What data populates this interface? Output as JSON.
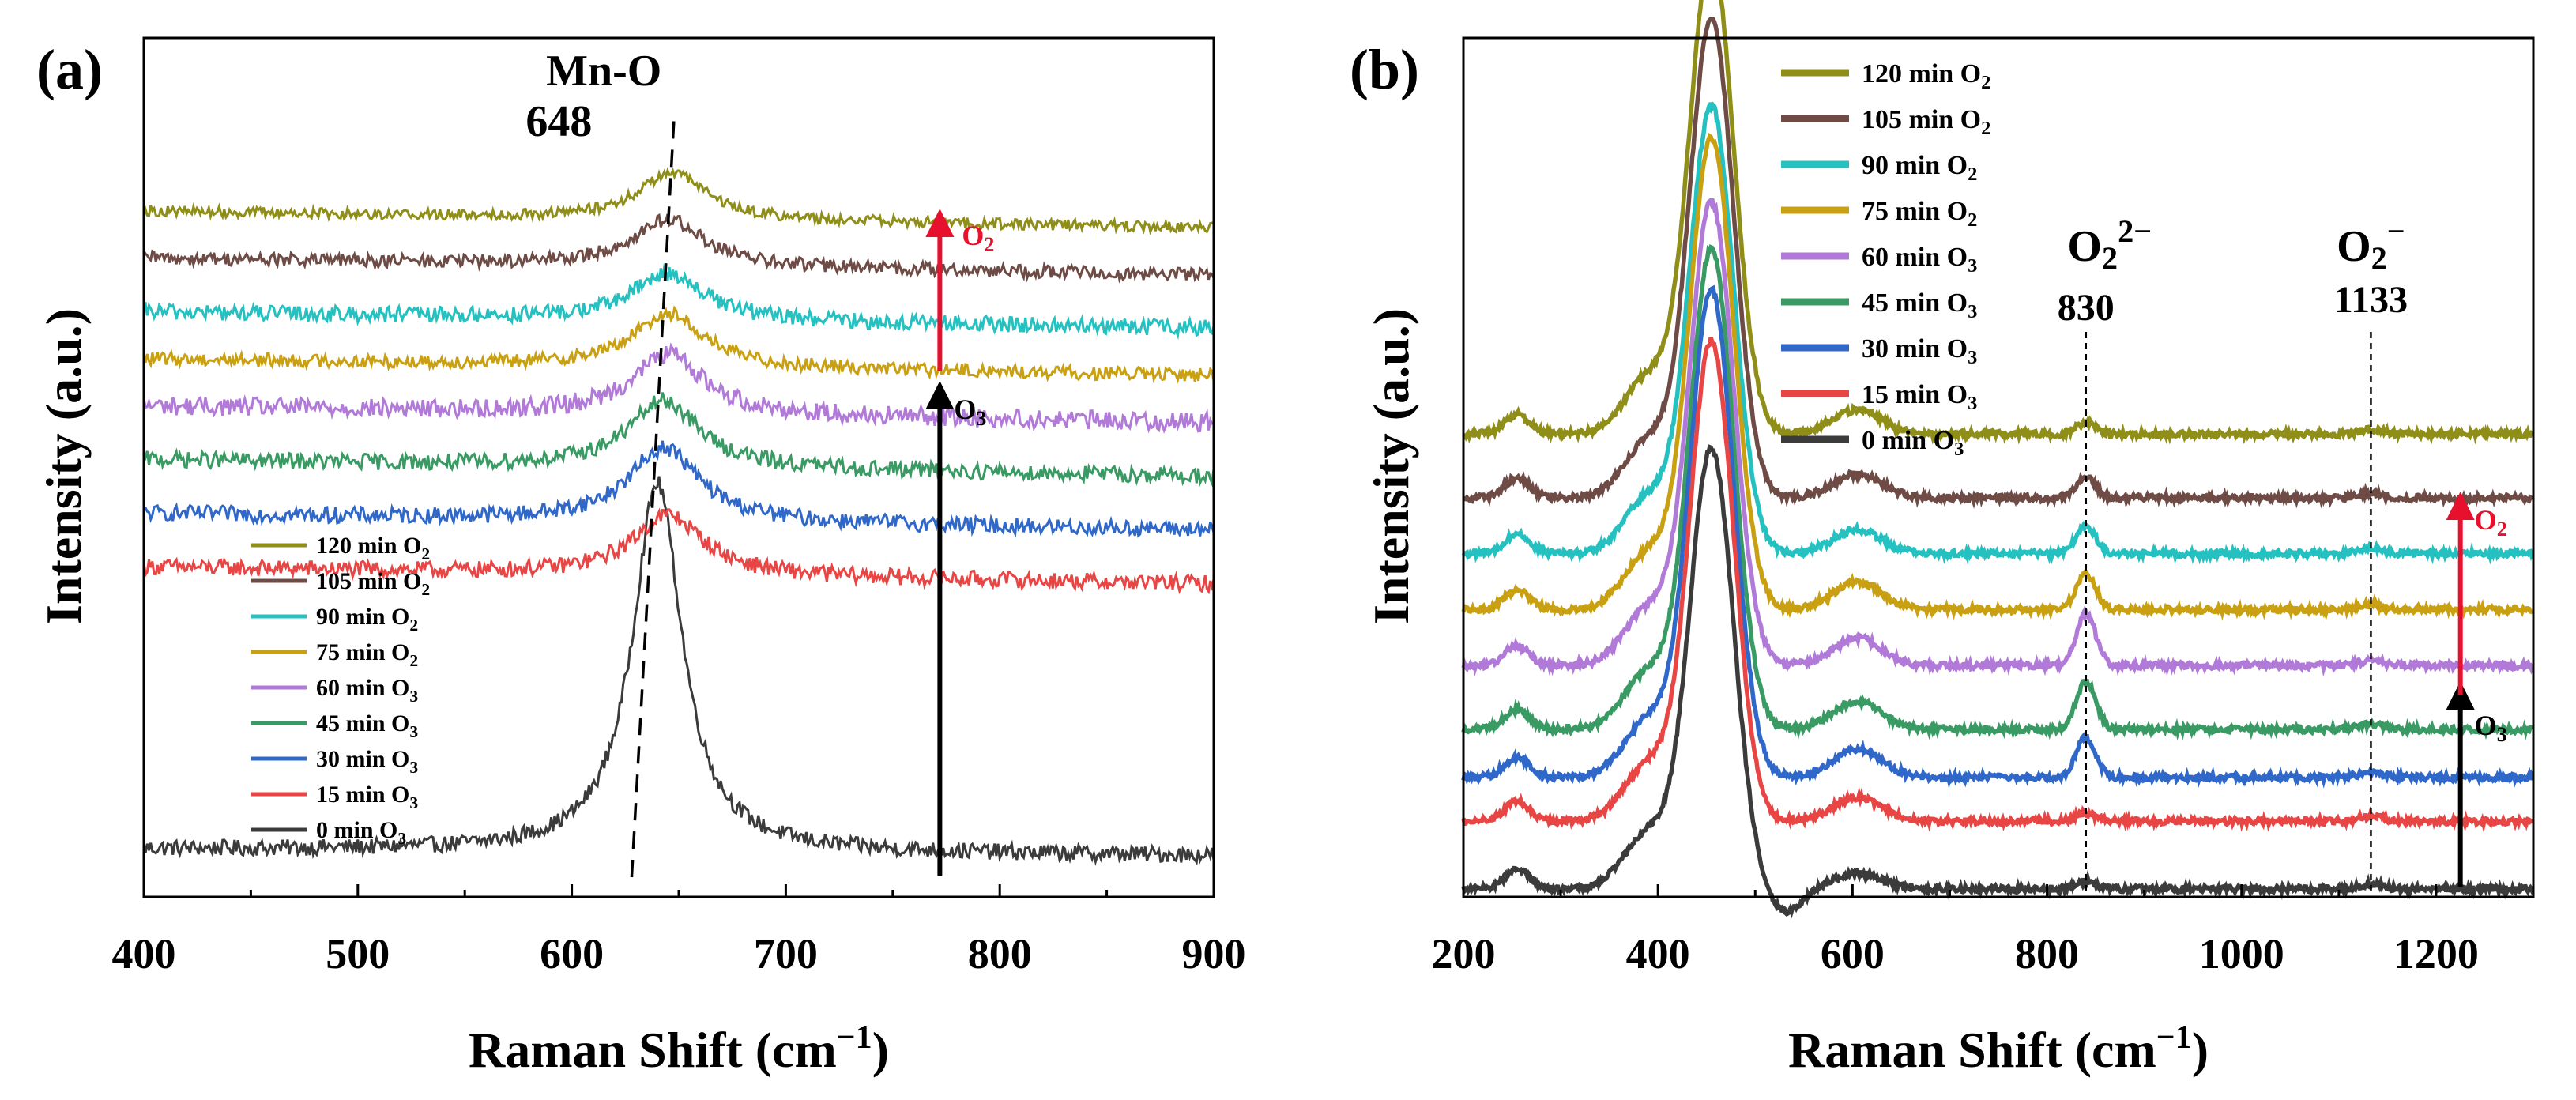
{
  "chart_data": [
    {
      "type": "line",
      "panel_label": "(a)",
      "xlabel": "Raman Shift (cm",
      "xlabel_sup": "−1",
      "xlabel_end": ")",
      "ylabel": "Intensity (a.u.)",
      "xlim": [
        400,
        900
      ],
      "xticks": [
        400,
        500,
        600,
        700,
        800,
        900
      ],
      "xtick_labels": [
        "400",
        "500",
        "600",
        "700",
        "800",
        "900"
      ],
      "series": [
        {
          "name": "0 min O3",
          "legend_main": "0 min O",
          "legend_sub": "3",
          "color": "#3b3b3b",
          "peak_pos": 640,
          "peak_width": 28,
          "peak_height": 0.55,
          "base": 0.03,
          "noise": 0.012
        },
        {
          "name": "15 min O3",
          "legend_main": "15 min O",
          "legend_sub": "3",
          "color": "#e84545",
          "peak_pos": 645,
          "peak_width": 40,
          "peak_height": 0.09,
          "base": 0.45,
          "noise": 0.012
        },
        {
          "name": "30 min O3",
          "legend_main": "30 min O",
          "legend_sub": "3",
          "color": "#2f68c8",
          "peak_pos": 643,
          "peak_width": 40,
          "peak_height": 0.11,
          "base": 0.53,
          "noise": 0.012
        },
        {
          "name": "45 min O3",
          "legend_main": "45 min O",
          "legend_sub": "3",
          "color": "#3a9a64",
          "peak_pos": 643,
          "peak_width": 40,
          "peak_height": 0.1,
          "base": 0.61,
          "noise": 0.012
        },
        {
          "name": "60 min O3",
          "legend_main": "60 min  O",
          "legend_sub": "3",
          "color": "#b27ad8",
          "peak_pos": 645,
          "peak_width": 40,
          "peak_height": 0.09,
          "base": 0.69,
          "noise": 0.014
        },
        {
          "name": "75 min O2",
          "legend_main": "75 min  O",
          "legend_sub": "2",
          "color": "#c9a012",
          "peak_pos": 645,
          "peak_width": 40,
          "peak_height": 0.08,
          "base": 0.76,
          "noise": 0.01
        },
        {
          "name": "90 min O2",
          "legend_main": "90 min  O",
          "legend_sub": "2",
          "color": "#25c1c1",
          "peak_pos": 645,
          "peak_width": 40,
          "peak_height": 0.07,
          "base": 0.83,
          "noise": 0.012
        },
        {
          "name": "105 min O2",
          "legend_main": "105 min  O",
          "legend_sub": "2",
          "color": "#6e4b45",
          "peak_pos": 645,
          "peak_width": 40,
          "peak_height": 0.07,
          "base": 0.91,
          "noise": 0.01
        },
        {
          "name": "120 min O2",
          "legend_main": "120 min  O",
          "legend_sub": "2",
          "color": "#8f8e18",
          "peak_pos": 647,
          "peak_width": 38,
          "peak_height": 0.07,
          "base": 0.98,
          "noise": 0.008
        }
      ],
      "annotations": {
        "peak_name": "Mn-O",
        "peak_value": "648",
        "guide_line_x": [
          628,
          648
        ],
        "arrow_x": 772,
        "arrow_o3_label": "O",
        "arrow_o3_sub": "3",
        "arrow_o2_label": "O",
        "arrow_o2_sub": "2",
        "arrow_black_color": "#000000",
        "arrow_red_color": "#e8112d"
      }
    },
    {
      "type": "line",
      "panel_label": "(b)",
      "xlabel": "Raman Shift (cm",
      "xlabel_sup": "−1",
      "xlabel_end": ")",
      "ylabel": "Intensity (a.u.)",
      "xlim": [
        200,
        1300
      ],
      "xticks": [
        200,
        400,
        600,
        800,
        1000,
        1200
      ],
      "xtick_labels": [
        "200",
        "400",
        "600",
        "800",
        "1000",
        "1200"
      ],
      "series": [
        {
          "name": "0 min O3",
          "legend_main": "0 min O",
          "legend_sub": "3",
          "color": "#3b3b3b",
          "base": 0.0,
          "main_peak": 0.55,
          "p830": 0.01,
          "p600": 0.02
        },
        {
          "name": "15 min O3",
          "legend_main": "15 min  O",
          "legend_sub": "3",
          "color": "#e84545",
          "base": 0.085,
          "main_peak": 0.6,
          "p830": 0.01,
          "p600": 0.03
        },
        {
          "name": "30 min O3",
          "legend_main": "30 min O",
          "legend_sub": "3",
          "color": "#2f68c8",
          "base": 0.14,
          "main_peak": 0.61,
          "p830": 0.05,
          "p600": 0.035
        },
        {
          "name": "45 min O3",
          "legend_main": "45 min O",
          "legend_sub": "3",
          "color": "#3a9a64",
          "base": 0.2,
          "main_peak": 0.6,
          "p830": 0.06,
          "p600": 0.035
        },
        {
          "name": "60 min O3",
          "legend_main": "60 min O",
          "legend_sub": "3",
          "color": "#b27ad8",
          "base": 0.28,
          "main_peak": 0.58,
          "p830": 0.065,
          "p600": 0.035
        },
        {
          "name": "75 min O2",
          "legend_main": "75 min O",
          "legend_sub": "2",
          "color": "#c9a012",
          "base": 0.35,
          "main_peak": 0.59,
          "p830": 0.045,
          "p600": 0.035
        },
        {
          "name": "90 min O2",
          "legend_main": "90 min O",
          "legend_sub": "2",
          "color": "#25c1c1",
          "base": 0.42,
          "main_peak": 0.56,
          "p830": 0.035,
          "p600": 0.03
        },
        {
          "name": "105 min O2",
          "legend_main": "105 min O",
          "legend_sub": "2",
          "color": "#6e4b45",
          "base": 0.49,
          "main_peak": 0.6,
          "p830": 0.025,
          "p600": 0.03
        },
        {
          "name": "120 min O2",
          "legend_main": "120 min O",
          "legend_sub": "2",
          "color": "#8f8e18",
          "base": 0.57,
          "main_peak": 0.6,
          "p830": 0.015,
          "p600": 0.03
        }
      ],
      "annotations": {
        "peak1_name": "O",
        "peak1_sub": "2",
        "peak1_sup": "2−",
        "peak1_value": "830",
        "peak1_x": 840,
        "peak2_name": "O",
        "peak2_sub": "2",
        "peak2_sup": "−",
        "peak2_value": "1133",
        "peak2_x": 1133,
        "arrow_x": 1225,
        "arrow_o3_label": "O",
        "arrow_o3_sub": "3",
        "arrow_o2_label": "O",
        "arrow_o2_sub": "2",
        "arrow_black_color": "#000000",
        "arrow_red_color": "#e8112d"
      }
    }
  ]
}
